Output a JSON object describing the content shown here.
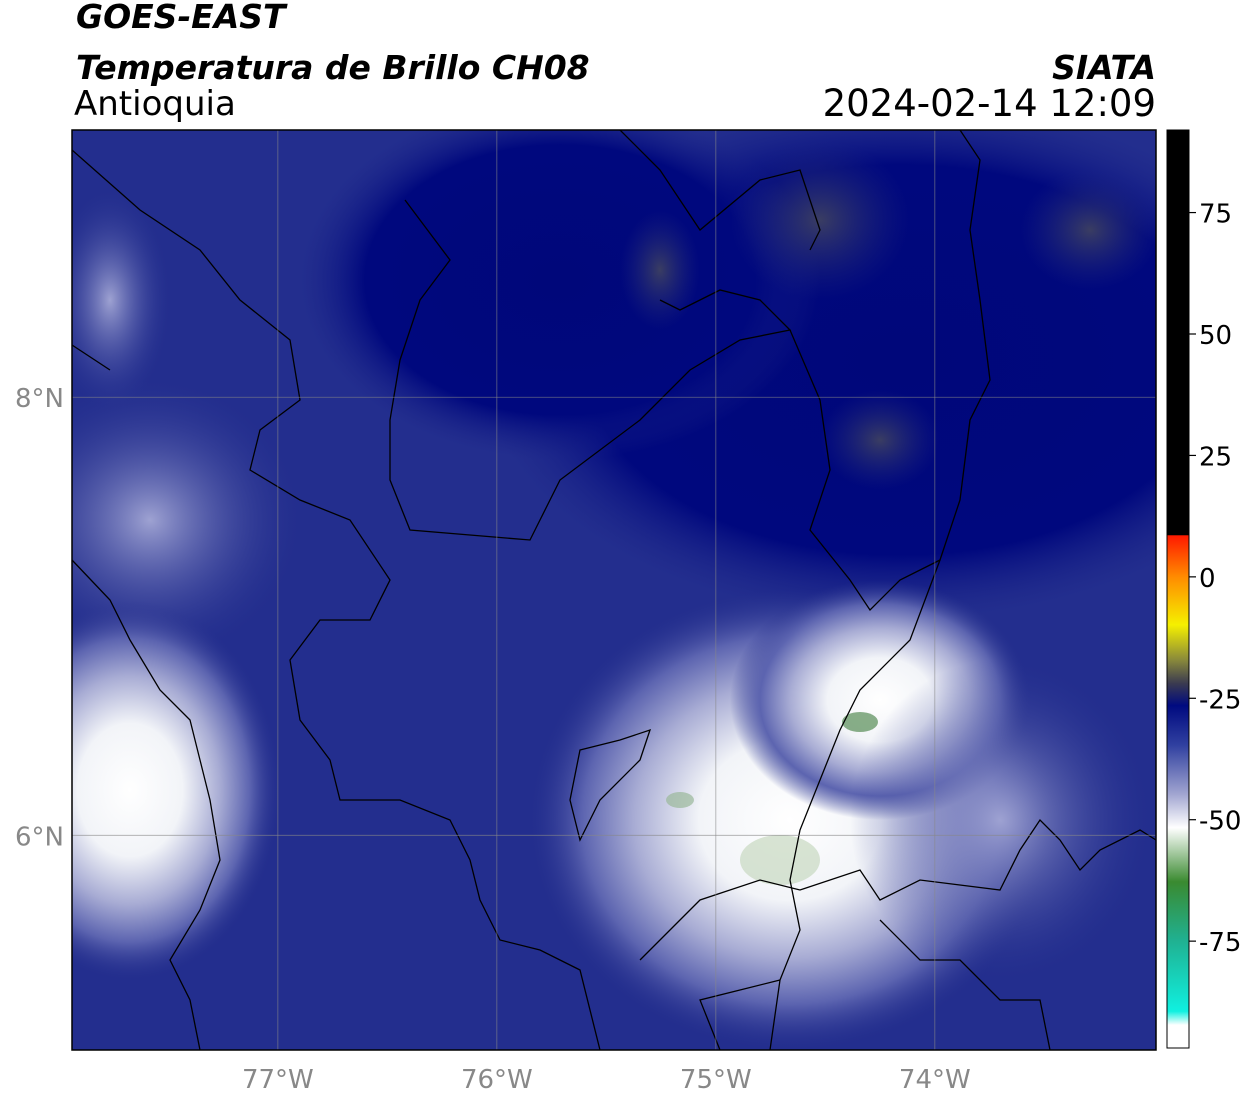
{
  "header": {
    "title": "GOES-EAST",
    "subtitle": "Temperatura de Brillo CH08",
    "region": "Antioquia",
    "source": "SIATA",
    "datetime": "2024-02-14 12:09"
  },
  "chart_data": {
    "type": "map",
    "xlim": [
      -77.94,
      -72.99
    ],
    "ylim": [
      5.02,
      9.22
    ],
    "xticks": [
      {
        "value": -77,
        "label": "77°W"
      },
      {
        "value": -76,
        "label": "76°W"
      },
      {
        "value": -75,
        "label": "75°W"
      },
      {
        "value": -74,
        "label": "74°W"
      }
    ],
    "yticks": [
      {
        "value": 8,
        "label": "8°N"
      },
      {
        "value": 6,
        "label": "6°N"
      }
    ],
    "grid": true,
    "colorbar": {
      "lim": [
        -97,
        92
      ],
      "ticks": [
        75,
        50,
        25,
        0,
        -25,
        -50,
        -75
      ]
    }
  }
}
